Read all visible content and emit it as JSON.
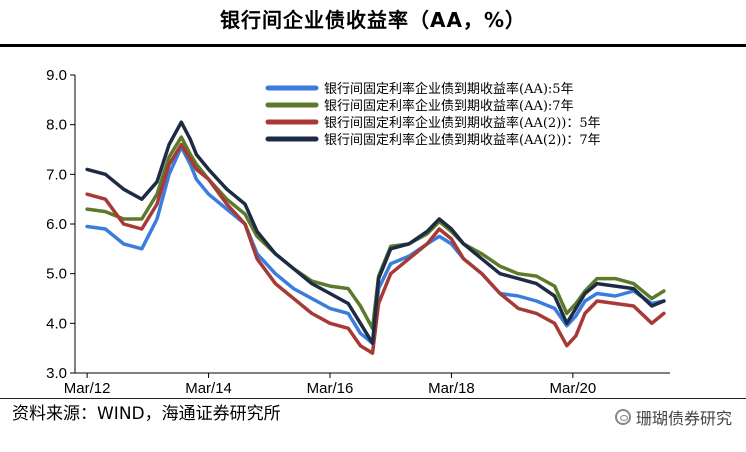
{
  "title": "银行间企业债收益率（AA，%）",
  "footer": {
    "source": "资料来源：WIND，海通证券研究所",
    "watermark": "珊瑚债券研究"
  },
  "chart_data": {
    "type": "line",
    "xlabel": "",
    "ylabel": "",
    "x_ticks": [
      "Mar/12",
      "Mar/14",
      "Mar/16",
      "Mar/18",
      "Mar/20"
    ],
    "y_ticks": [
      "3.0",
      "4.0",
      "5.0",
      "6.0",
      "7.0",
      "8.0",
      "9.0"
    ],
    "ylim": [
      3.0,
      9.0
    ],
    "xlim": [
      2012.0,
      2021.8
    ],
    "legend_position": "top-right",
    "x": [
      2012.2,
      2012.5,
      2012.8,
      2013.1,
      2013.35,
      2013.55,
      2013.75,
      2013.9,
      2014.0,
      2014.2,
      2014.5,
      2014.8,
      2015.0,
      2015.3,
      2015.6,
      2015.9,
      2016.2,
      2016.5,
      2016.7,
      2016.9,
      2017.0,
      2017.2,
      2017.5,
      2017.8,
      2018.0,
      2018.2,
      2018.4,
      2018.7,
      2019.0,
      2019.3,
      2019.6,
      2019.9,
      2020.1,
      2020.25,
      2020.4,
      2020.6,
      2020.9,
      2021.2,
      2021.5,
      2021.7
    ],
    "series": [
      {
        "name": "银行间固定利率企业债到期收益率(AA):5年",
        "color": "#3b7ddd",
        "values": [
          5.95,
          5.9,
          5.6,
          5.5,
          6.1,
          7.0,
          7.55,
          7.2,
          6.9,
          6.6,
          6.3,
          6.0,
          5.4,
          5.0,
          4.7,
          4.5,
          4.3,
          4.2,
          3.8,
          3.6,
          4.7,
          5.2,
          5.35,
          5.6,
          5.75,
          5.6,
          5.3,
          5.0,
          4.6,
          4.55,
          4.45,
          4.3,
          3.95,
          4.15,
          4.45,
          4.6,
          4.55,
          4.65,
          4.4,
          4.45
        ]
      },
      {
        "name": "银行间固定利率企业债到期收益率(AA):7年",
        "color": "#5c7a2b",
        "values": [
          6.3,
          6.25,
          6.1,
          6.1,
          6.6,
          7.35,
          7.75,
          7.4,
          7.2,
          6.9,
          6.5,
          6.2,
          5.75,
          5.4,
          5.1,
          4.85,
          4.75,
          4.7,
          4.35,
          3.9,
          4.95,
          5.55,
          5.6,
          5.8,
          6.05,
          5.85,
          5.6,
          5.4,
          5.15,
          5.0,
          4.95,
          4.75,
          4.2,
          4.4,
          4.65,
          4.9,
          4.9,
          4.8,
          4.5,
          4.65
        ]
      },
      {
        "name": "银行间固定利率企业债到期收益率(AA(2))：5年",
        "color": "#a83a36",
        "values": [
          6.6,
          6.5,
          6.0,
          5.9,
          6.4,
          7.2,
          7.6,
          7.3,
          7.1,
          6.9,
          6.4,
          6.0,
          5.3,
          4.8,
          4.5,
          4.2,
          4.0,
          3.9,
          3.55,
          3.4,
          4.4,
          5.0,
          5.3,
          5.6,
          5.9,
          5.7,
          5.3,
          5.0,
          4.6,
          4.3,
          4.2,
          4.0,
          3.55,
          3.75,
          4.2,
          4.45,
          4.4,
          4.35,
          4.0,
          4.2
        ]
      },
      {
        "name": "银行间固定利率企业债到期收益率(AA(2))：7年",
        "color": "#1d2b44",
        "values": [
          7.1,
          7.0,
          6.7,
          6.5,
          6.85,
          7.6,
          8.05,
          7.7,
          7.4,
          7.1,
          6.7,
          6.4,
          5.85,
          5.4,
          5.1,
          4.8,
          4.6,
          4.4,
          4.0,
          3.6,
          4.9,
          5.5,
          5.6,
          5.85,
          6.1,
          5.9,
          5.6,
          5.3,
          5.0,
          4.9,
          4.8,
          4.55,
          4.0,
          4.3,
          4.6,
          4.8,
          4.75,
          4.7,
          4.35,
          4.45
        ]
      }
    ]
  }
}
